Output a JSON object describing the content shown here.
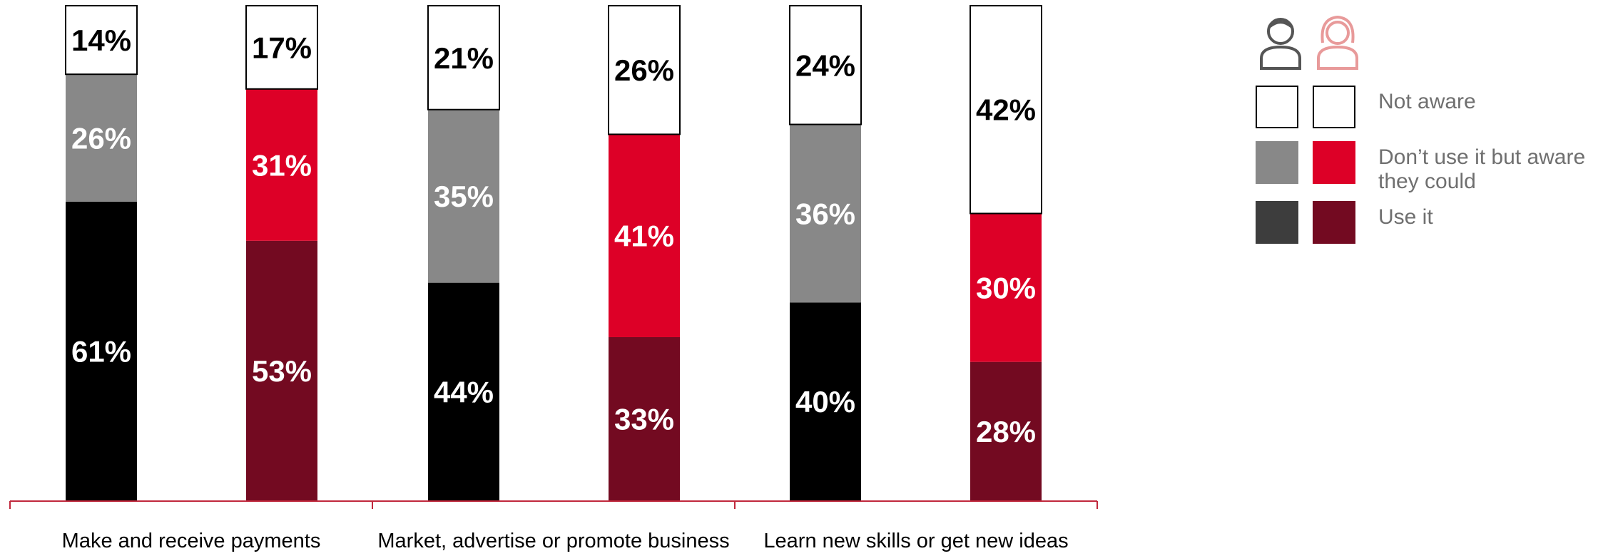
{
  "colors": {
    "not_aware": "#ffffff",
    "male_aware": "#888888",
    "male_use": "#000000",
    "female_aware": "#dd0027",
    "female_use": "#730a21",
    "legend_male_use": "#3d3d3d",
    "axis": "#c0283c",
    "icon_male": "#555555",
    "icon_female": "#e89a9a"
  },
  "legend": {
    "icons": [
      "male-person-icon",
      "female-person-icon"
    ],
    "items": [
      {
        "label": "Not aware"
      },
      {
        "label": "Don’t use it but aware they could"
      },
      {
        "label": "Use it"
      }
    ]
  },
  "chart_data": {
    "type": "bar",
    "stacked": true,
    "stack_order_bottom_to_top": [
      "Use it",
      "Don’t use it but aware they could",
      "Not aware"
    ],
    "ylim": [
      0,
      100
    ],
    "categories": [
      "Make and receive payments",
      "Market, advertise or promote business",
      "Learn new skills or get new ideas"
    ],
    "groups": [
      "male",
      "female"
    ],
    "bars": [
      {
        "category": "Make and receive payments",
        "group": "male",
        "values": [
          61,
          26,
          14
        ],
        "labels": [
          "61%",
          "26%",
          "14%"
        ]
      },
      {
        "category": "Make and receive payments",
        "group": "female",
        "values": [
          53,
          31,
          17
        ],
        "labels": [
          "53%",
          "31%",
          "17%"
        ]
      },
      {
        "category": "Market, advertise or promote business",
        "group": "male",
        "values": [
          44,
          35,
          21
        ],
        "labels": [
          "44%",
          "35%",
          "21%"
        ]
      },
      {
        "category": "Market, advertise or promote business",
        "group": "female",
        "values": [
          33,
          41,
          26
        ],
        "labels": [
          "33%",
          "41%",
          "26%"
        ]
      },
      {
        "category": "Learn new skills or get new ideas",
        "group": "male",
        "values": [
          40,
          36,
          24
        ],
        "labels": [
          "40%",
          "36%",
          "24%"
        ]
      },
      {
        "category": "Learn new skills or get new ideas",
        "group": "female",
        "values": [
          28,
          30,
          42
        ],
        "labels": [
          "28%",
          "30%",
          "42%"
        ]
      }
    ]
  }
}
